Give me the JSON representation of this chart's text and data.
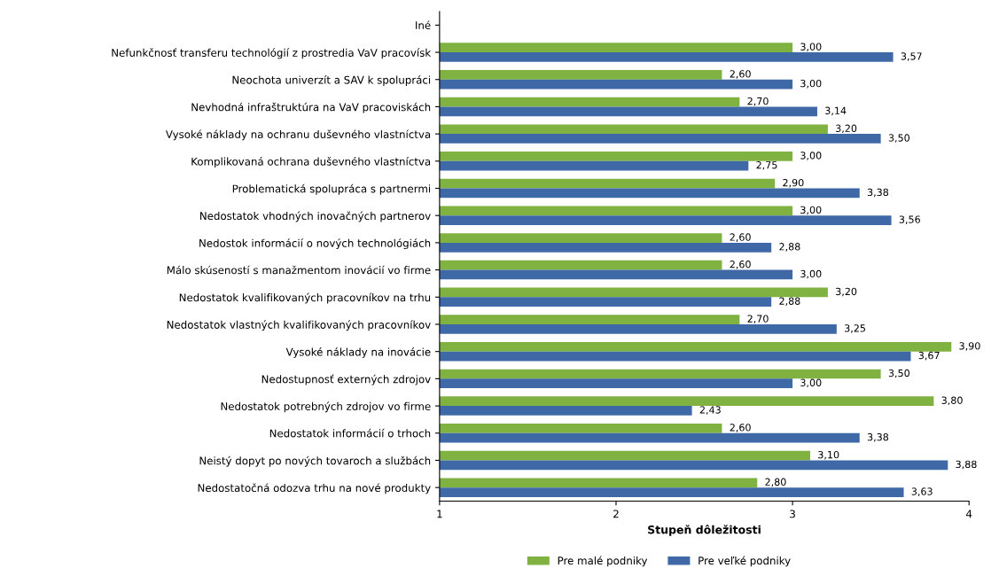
{
  "chart_data": {
    "type": "bar",
    "orientation": "horizontal",
    "xlabel": "Stupeň dôležitosti",
    "categories": [
      "Iné",
      "Nefunkčnosť transferu technológií z prostredia VaV pracovísk",
      "Neochota univerzít a SAV k spolupráci",
      "Nevhodná infraštruktúra na VaV pracoviskách",
      "Vysoké náklady na ochranu duševného vlastníctva",
      "Komplikovaná ochrana duševného vlastníctva",
      "Problematická spolupráca s partnermi",
      "Nedostatok vhodných inovačných partnerov",
      "Nedostok informácií o nových technológiách",
      "Málo skúseností s manažmentom inovácií vo firme",
      "Nedostatok kvalifikovaných pracovníkov na trhu",
      "Nedostatok vlastných kvalifikovaných pracovníkov",
      "Vysoké náklady na inovácie",
      "Nedostupnosť externých zdrojov",
      "Nedostatok potrebných zdrojov vo firme",
      "Nedostatok informácií o trhoch",
      "Neistý dopyt po nových tovaroch a službách",
      "Nedostatočná odozva trhu na nové produkty"
    ],
    "series": [
      {
        "name": "Pre malé podniky",
        "color": "#7fb241",
        "values": [
          null,
          3.0,
          2.6,
          2.7,
          3.2,
          3.0,
          2.9,
          3.0,
          2.6,
          2.6,
          3.2,
          2.7,
          3.9,
          3.5,
          3.8,
          2.6,
          3.1,
          2.8
        ],
        "value_labels": [
          null,
          "3,00",
          "2,60",
          "2,70",
          "3,20",
          "3,00",
          "2,90",
          "3,00",
          "2,60",
          "2,60",
          "3,20",
          "2,70",
          "3,90",
          "3,50",
          "3,80",
          "2,60",
          "3,10",
          "2,80"
        ]
      },
      {
        "name": "Pre veľké podniky",
        "color": "#3f68a6",
        "values": [
          null,
          3.57,
          3.0,
          3.14,
          3.5,
          2.75,
          3.38,
          3.56,
          2.88,
          3.0,
          2.88,
          3.25,
          3.67,
          3.0,
          2.43,
          3.38,
          3.88,
          3.63
        ],
        "value_labels": [
          null,
          "3,57",
          "3,00",
          "3,14",
          "3,50",
          "2,75",
          "3,38",
          "3,56",
          "2,88",
          "3,00",
          "2,88",
          "3,25",
          "3,67",
          "3,00",
          "2,43",
          "3,38",
          "3,88",
          "3,63"
        ]
      }
    ],
    "xlim": [
      1,
      4
    ],
    "xticks": [
      1,
      2,
      3,
      4
    ],
    "grid": false,
    "legend": "bottom"
  }
}
